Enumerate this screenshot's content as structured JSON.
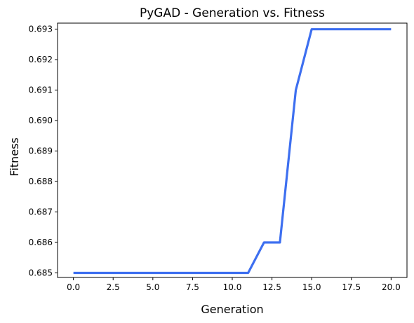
{
  "chart_data": {
    "type": "line",
    "title": "PyGAD - Generation vs. Fitness",
    "xlabel": "Generation",
    "ylabel": "Fitness",
    "xlim": [
      -1,
      21
    ],
    "ylim": [
      0.68485,
      0.6932
    ],
    "xticks": [
      0.0,
      2.5,
      5.0,
      7.5,
      10.0,
      12.5,
      15.0,
      17.5,
      20.0
    ],
    "xtick_labels": [
      "0.0",
      "2.5",
      "5.0",
      "7.5",
      "10.0",
      "12.5",
      "15.0",
      "17.5",
      "20.0"
    ],
    "yticks": [
      0.685,
      0.686,
      0.687,
      0.688,
      0.689,
      0.69,
      0.691,
      0.692,
      0.693
    ],
    "ytick_labels": [
      "0.685",
      "0.686",
      "0.687",
      "0.688",
      "0.689",
      "0.690",
      "0.691",
      "0.692",
      "0.693"
    ],
    "grid": false,
    "series": [
      {
        "name": "Fitness",
        "color": "#3d6ff0",
        "x": [
          0,
          1,
          2,
          3,
          4,
          5,
          6,
          7,
          8,
          9,
          10,
          11,
          12,
          13,
          14,
          15,
          16,
          17,
          18,
          19,
          20
        ],
        "values": [
          0.685,
          0.685,
          0.685,
          0.685,
          0.685,
          0.685,
          0.685,
          0.685,
          0.685,
          0.685,
          0.685,
          0.685,
          0.686,
          0.686,
          0.691,
          0.693,
          0.693,
          0.693,
          0.693,
          0.693,
          0.693
        ]
      }
    ]
  }
}
